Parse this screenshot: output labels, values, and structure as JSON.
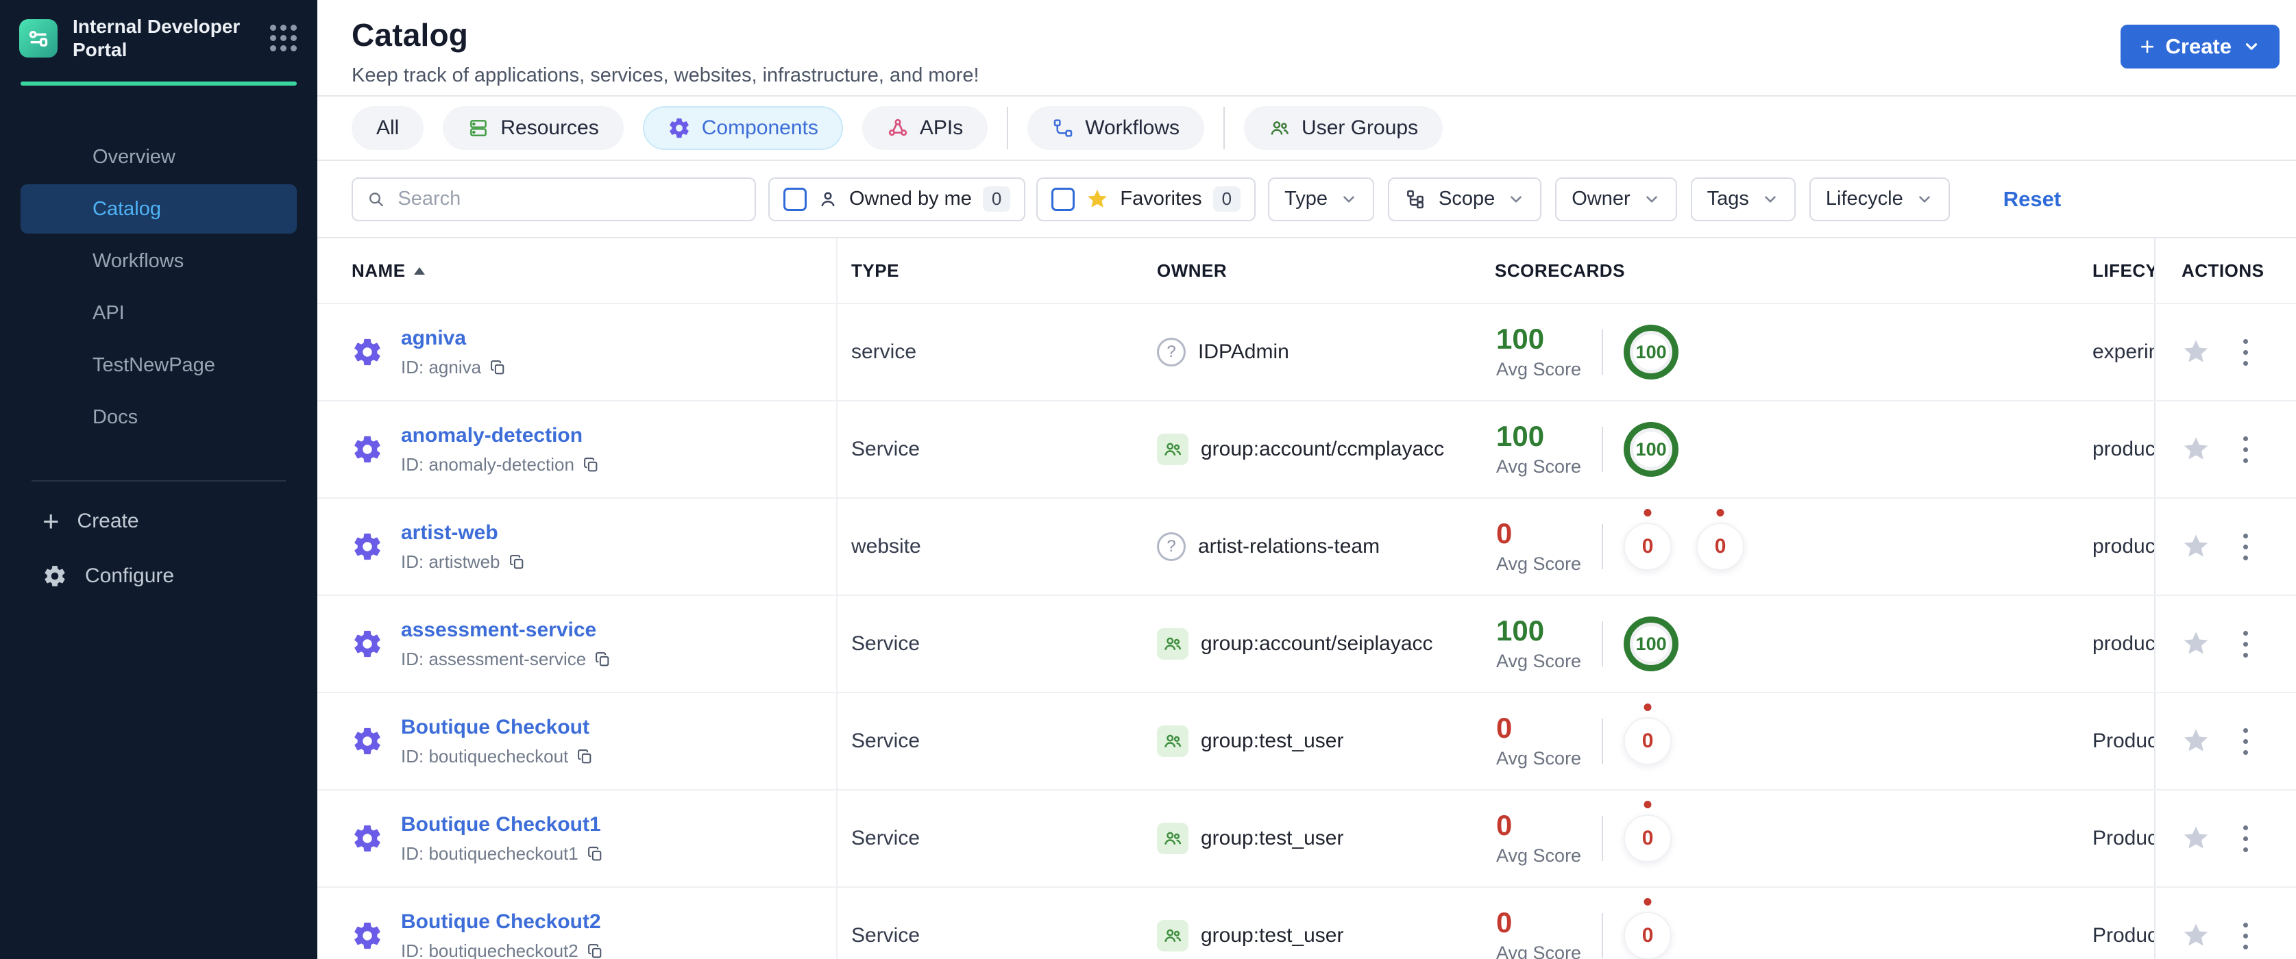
{
  "app": {
    "title": "Internal Developer Portal"
  },
  "sidebar": {
    "nav": [
      {
        "label": "Overview",
        "active": false
      },
      {
        "label": "Catalog",
        "active": true
      },
      {
        "label": "Workflows",
        "active": false
      },
      {
        "label": "API",
        "active": false
      },
      {
        "label": "TestNewPage",
        "active": false
      },
      {
        "label": "Docs",
        "active": false
      }
    ],
    "footer": [
      {
        "label": "Create",
        "icon": "plus"
      },
      {
        "label": "Configure",
        "icon": "gear"
      }
    ]
  },
  "header": {
    "title": "Catalog",
    "subtitle": "Keep track of applications, services, websites, infrastructure, and more!",
    "create_label": "Create"
  },
  "tabs": [
    {
      "label": "All",
      "icon": null,
      "active": false
    },
    {
      "label": "Resources",
      "icon": "resources",
      "active": false
    },
    {
      "label": "Components",
      "icon": "component",
      "active": true
    },
    {
      "label": "APIs",
      "icon": "api",
      "active": false
    },
    {
      "divider": true
    },
    {
      "label": "Workflows",
      "icon": "workflow",
      "active": false
    },
    {
      "divider": true
    },
    {
      "label": "User Groups",
      "icon": "usergroup",
      "active": false
    }
  ],
  "filters": {
    "search_placeholder": "Search",
    "toggles": [
      {
        "label": "Owned by me",
        "count": "0",
        "icon": "person"
      },
      {
        "label": "Favorites",
        "count": "0",
        "icon": "favstar"
      }
    ],
    "dropdowns": [
      {
        "label": "Type",
        "icon": null
      },
      {
        "label": "Scope",
        "icon": "scope"
      },
      {
        "label": "Owner",
        "icon": null
      },
      {
        "label": "Tags",
        "icon": null
      },
      {
        "label": "Lifecycle",
        "icon": null
      }
    ],
    "reset_label": "Reset"
  },
  "table": {
    "columns": [
      "NAME",
      "TYPE",
      "OWNER",
      "SCORECARDS",
      "LIFECYCLE",
      "ACTIONS"
    ],
    "sort_column": "NAME",
    "avg_score_label": "Avg Score",
    "rows": [
      {
        "name": "agniva",
        "id": "ID: agniva",
        "type": "service",
        "owner": "IDPAdmin",
        "owner_icon": "unknown",
        "avg_score": "100",
        "score_state": "good",
        "rings": [
          {
            "value": "100",
            "state": "good"
          }
        ],
        "lifecycle": "experimental"
      },
      {
        "name": "anomaly-detection",
        "id": "ID: anomaly-detection",
        "type": "Service",
        "owner": "group:account/ccmplayacc",
        "owner_icon": "group",
        "avg_score": "100",
        "score_state": "good",
        "rings": [
          {
            "value": "100",
            "state": "good"
          }
        ],
        "lifecycle": "production"
      },
      {
        "name": "artist-web",
        "id": "ID: artistweb",
        "type": "website",
        "owner": "artist-relations-team",
        "owner_icon": "unknown",
        "avg_score": "0",
        "score_state": "bad",
        "rings": [
          {
            "value": "0",
            "state": "bad"
          },
          {
            "value": "0",
            "state": "bad"
          }
        ],
        "lifecycle": "production"
      },
      {
        "name": "assessment-service",
        "id": "ID: assessment-service",
        "type": "Service",
        "owner": "group:account/seiplayacc",
        "owner_icon": "group",
        "avg_score": "100",
        "score_state": "good",
        "rings": [
          {
            "value": "100",
            "state": "good"
          }
        ],
        "lifecycle": "production"
      },
      {
        "name": "Boutique Checkout",
        "id": "ID: boutiquecheckout",
        "type": "Service",
        "owner": "group:test_user",
        "owner_icon": "group",
        "avg_score": "0",
        "score_state": "bad",
        "rings": [
          {
            "value": "0",
            "state": "bad"
          }
        ],
        "lifecycle": "Production"
      },
      {
        "name": "Boutique Checkout1",
        "id": "ID: boutiquecheckout1",
        "type": "Service",
        "owner": "group:test_user",
        "owner_icon": "group",
        "avg_score": "0",
        "score_state": "bad",
        "rings": [
          {
            "value": "0",
            "state": "bad"
          }
        ],
        "lifecycle": "Production"
      },
      {
        "name": "Boutique Checkout2",
        "id": "ID: boutiquecheckout2",
        "type": "Service",
        "owner": "group:test_user",
        "owner_icon": "group",
        "avg_score": "0",
        "score_state": "bad",
        "rings": [
          {
            "value": "0",
            "state": "bad"
          }
        ],
        "lifecycle": "Production"
      }
    ]
  },
  "colors": {
    "accent_blue": "#2f6bd8",
    "link_blue": "#3d6dd8",
    "success_green": "#2e7d32",
    "danger_red": "#c43a2f",
    "gear_purple": "#6b5ce7",
    "teal": "#3bd6a0",
    "sidebar_bg": "#0f1b2d",
    "sidebar_active_bg": "#1b3a63",
    "sidebar_active_text": "#4fb3f6",
    "tab_selected_bg": "#e7f5fd",
    "favorite_yellow": "#f4c430",
    "owner_badge_bg": "#e1f3de",
    "owner_badge_green": "#3e8e3e"
  }
}
